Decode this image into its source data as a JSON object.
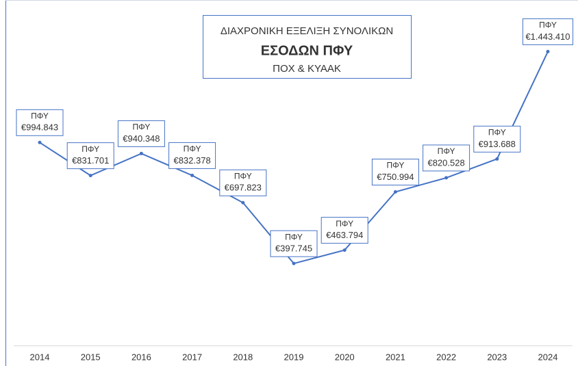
{
  "chart_data": {
    "type": "line",
    "title_lines": [
      "ΔΙΑΧΡΟΝΙΚΗ ΕΞΕΛΙΞΗ  ΣΥΝΟΛΙΚΩΝ",
      "ΕΣΟΔΩΝ ΠΦΥ",
      "ΠΟΧ & ΚΥΑΑΚ"
    ],
    "categories": [
      "2014",
      "2015",
      "2016",
      "2017",
      "2018",
      "2019",
      "2020",
      "2021",
      "2022",
      "2023",
      "2024"
    ],
    "series": [
      {
        "name": "ΠΦΥ",
        "color": "#4472c4",
        "values": [
          994843,
          831701,
          940348,
          832378,
          697823,
          397745,
          463794,
          750994,
          820528,
          913688,
          1443410
        ],
        "value_labels": [
          "€994.843",
          "€831.701",
          "€940.348",
          "€832.378",
          "€697.823",
          "€397.745",
          "€463.794",
          "€750.994",
          "€820.528",
          "€913.688",
          "€1.443.410"
        ]
      }
    ],
    "ylim": [
      0,
      1600000
    ]
  }
}
